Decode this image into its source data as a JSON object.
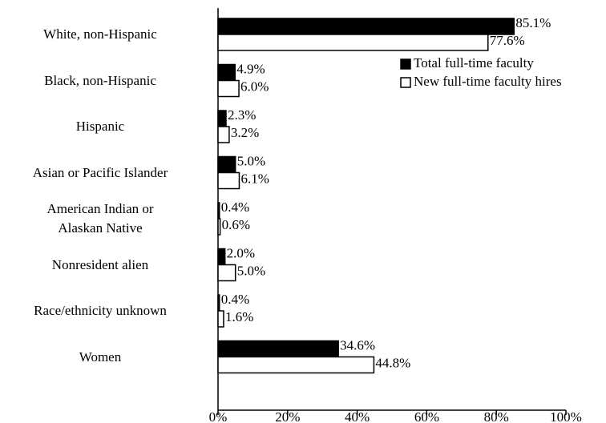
{
  "chart_data": {
    "type": "hbar",
    "categories": [
      "White, non-Hispanic",
      "Black, non-Hispanic",
      "Hispanic",
      "Asian or Pacific Islander",
      "American Indian or Alaskan Native",
      "Nonresident alien",
      "Race/ethnicity unknown",
      "Women"
    ],
    "series": [
      {
        "name": "Total full-time faculty",
        "color": "#000000",
        "values": [
          85.1,
          4.9,
          2.3,
          5.0,
          0.4,
          2.0,
          0.4,
          34.6
        ],
        "value_labels": [
          "85.1%",
          "4.9%",
          "2.3%",
          "5.0%",
          "0.4%",
          "2.0%",
          "0.4%",
          "34.6%"
        ]
      },
      {
        "name": "New full-time faculty hires",
        "color": "#ffffff",
        "values": [
          77.6,
          6.0,
          3.2,
          6.1,
          0.6,
          5.0,
          1.6,
          44.8
        ],
        "value_labels": [
          "77.6%",
          "6.0%",
          "3.2%",
          "6.1%",
          "0.6%",
          "5.0%",
          "1.6%",
          "44.8%"
        ]
      }
    ],
    "xlim": [
      0,
      100
    ],
    "xticks": [
      {
        "value": 0,
        "label": "0%"
      },
      {
        "value": 20,
        "label": "20%"
      },
      {
        "value": 40,
        "label": "40%"
      },
      {
        "value": 60,
        "label": "60%"
      },
      {
        "value": 80,
        "label": "80%"
      },
      {
        "value": 100,
        "label": "100%"
      }
    ]
  }
}
